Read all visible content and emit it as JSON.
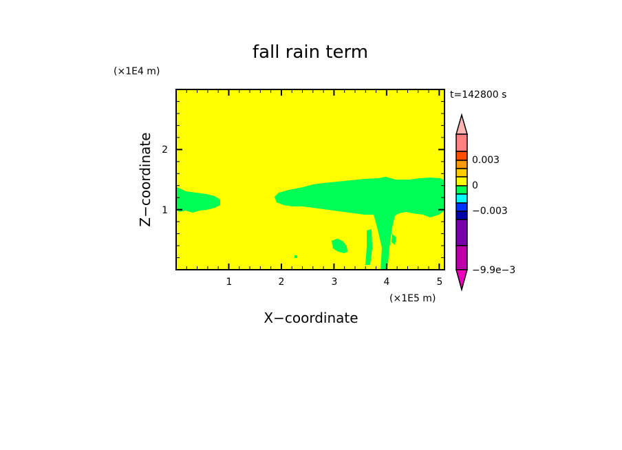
{
  "chart_data": {
    "type": "heatmap",
    "title": "fall rain term",
    "xlabel": "X-coordinate",
    "ylabel": "Z-coordinate",
    "x_unit_label": "(×1E5 m)",
    "y_unit_label": "(×1E4 m)",
    "time_label": "t=142800 s",
    "xlim": [
      0,
      5.1
    ],
    "ylim": [
      0,
      3
    ],
    "x_ticks": [
      "1",
      "2",
      "3",
      "4",
      "5"
    ],
    "y_ticks": [
      "1",
      "2"
    ],
    "background_level_color": "#ffff00",
    "feature_level_color": "#00ff55",
    "colorbar": {
      "labels": [
        "0.003",
        "0",
        "-0.003",
        "-9.9e-3"
      ],
      "label_values": [
        0.003,
        0,
        -0.003,
        -0.0099
      ],
      "colors_top_to_bottom": [
        "#ffb4b4",
        "#ff8080",
        "#ff5000",
        "#ff9900",
        "#ffcc00",
        "#ffff00",
        "#00ff55",
        "#00ffff",
        "#0033ff",
        "#0000aa",
        "#7700aa",
        "#bb00aa",
        "#ee00bb"
      ]
    }
  }
}
